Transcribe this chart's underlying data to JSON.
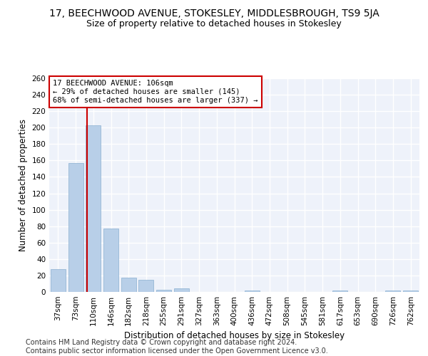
{
  "title": "17, BEECHWOOD AVENUE, STOKESLEY, MIDDLESBROUGH, TS9 5JA",
  "subtitle": "Size of property relative to detached houses in Stokesley",
  "xlabel": "Distribution of detached houses by size in Stokesley",
  "ylabel": "Number of detached properties",
  "categories": [
    "37sqm",
    "73sqm",
    "110sqm",
    "146sqm",
    "182sqm",
    "218sqm",
    "255sqm",
    "291sqm",
    "327sqm",
    "363sqm",
    "400sqm",
    "436sqm",
    "472sqm",
    "508sqm",
    "545sqm",
    "581sqm",
    "617sqm",
    "653sqm",
    "690sqm",
    "726sqm",
    "762sqm"
  ],
  "values": [
    28,
    157,
    203,
    77,
    17,
    15,
    3,
    4,
    0,
    0,
    0,
    2,
    0,
    0,
    0,
    0,
    2,
    0,
    0,
    2,
    2
  ],
  "bar_color": "#b8cfe8",
  "bar_edge_color": "#8aafd0",
  "vline_color": "#cc0000",
  "annotation_text": "17 BEECHWOOD AVENUE: 106sqm\n← 29% of detached houses are smaller (145)\n68% of semi-detached houses are larger (337) →",
  "annotation_box_color": "#ffffff",
  "annotation_box_edge": "#cc0000",
  "ylim": [
    0,
    260
  ],
  "yticks": [
    0,
    20,
    40,
    60,
    80,
    100,
    120,
    140,
    160,
    180,
    200,
    220,
    240,
    260
  ],
  "bg_color": "#eef2fa",
  "grid_color": "#ffffff",
  "footer": "Contains HM Land Registry data © Crown copyright and database right 2024.\nContains public sector information licensed under the Open Government Licence v3.0.",
  "title_fontsize": 10,
  "subtitle_fontsize": 9,
  "axis_label_fontsize": 8.5,
  "tick_fontsize": 7.5,
  "annotation_fontsize": 7.5,
  "footer_fontsize": 7
}
